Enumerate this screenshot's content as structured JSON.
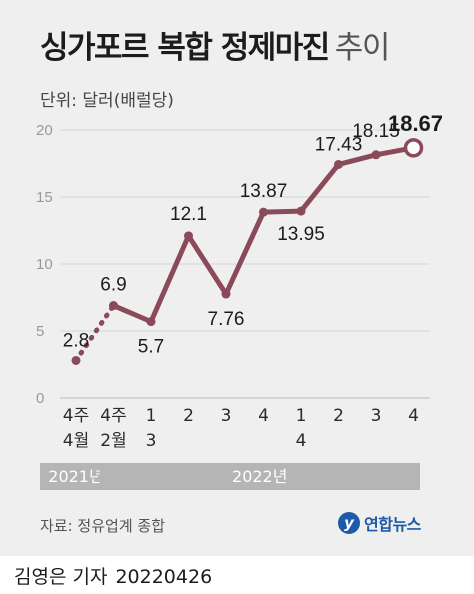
{
  "title": "싱가포르 복합 정제마진",
  "title_sub": "추이",
  "unit_label": "단위: 달러(배럴당)",
  "source": "자료: 정유업계 종합",
  "logo_text": "연합뉴스",
  "logo_mark": "y",
  "reporter": "김영은 기자",
  "date": "20220426",
  "colors": {
    "line": "#8a4a5a",
    "grid": "#d4d4d4",
    "axis_text": "#999999",
    "year_bar": "#b5b5b5"
  },
  "chart_data": {
    "type": "line",
    "categories": [
      [
        "4주",
        "4월"
      ],
      [
        "4주",
        "2월"
      ],
      [
        "1",
        "3"
      ],
      [
        "2",
        ""
      ],
      [
        "3",
        ""
      ],
      [
        "4",
        ""
      ],
      [
        "1",
        "4"
      ],
      [
        "2",
        ""
      ],
      [
        "3",
        ""
      ],
      [
        "4",
        ""
      ]
    ],
    "values": [
      2.8,
      6.9,
      5.7,
      12.1,
      7.76,
      13.87,
      13.95,
      17.43,
      18.15,
      18.67
    ],
    "value_labels": [
      "2.8",
      "6.9",
      "5.7",
      "12.1",
      "7.76",
      "13.87",
      "13.95",
      "17.43",
      "18.15",
      "18.67"
    ],
    "dotted_segment": [
      0,
      1
    ],
    "highlight_last": true,
    "yticks": [
      0,
      5,
      10,
      15,
      20
    ],
    "ylim": [
      0,
      20
    ],
    "grid": true,
    "year_groups": [
      {
        "label": "2021년",
        "from": 0,
        "to": 0
      },
      {
        "label": "2022년",
        "from": 1,
        "to": 9
      }
    ]
  }
}
